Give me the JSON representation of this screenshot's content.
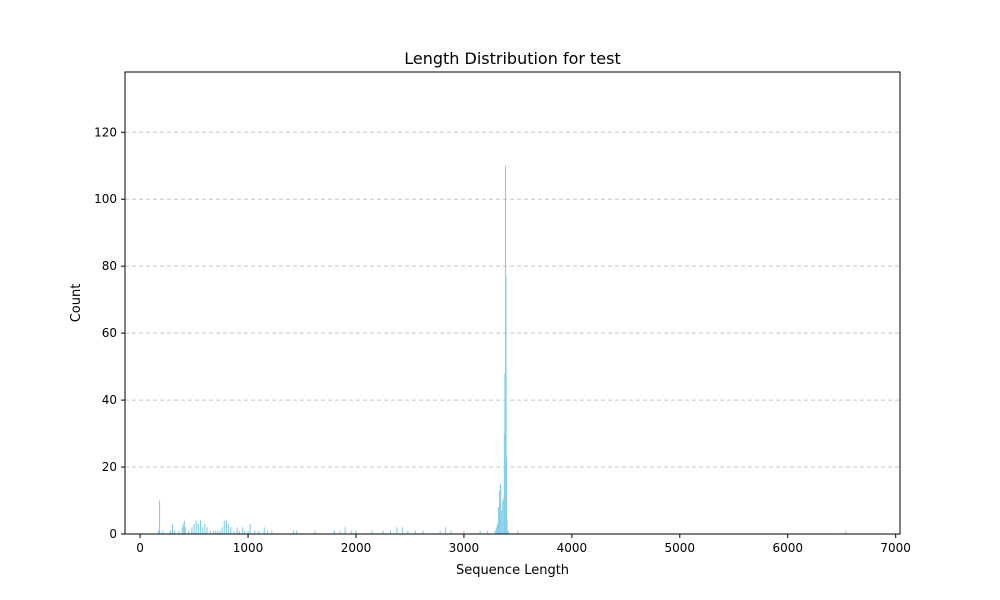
{
  "chart_data": {
    "type": "bar",
    "title": "Length Distribution for test",
    "xlabel": "Sequence Length",
    "ylabel": "Count",
    "xlim": [
      -140,
      7040
    ],
    "ylim": [
      0,
      138
    ],
    "xticks": [
      0,
      1000,
      2000,
      3000,
      4000,
      5000,
      6000,
      7000
    ],
    "yticks": [
      0,
      20,
      40,
      60,
      80,
      100,
      120
    ],
    "grid": "y-dashed",
    "bar_color": "#87ceeb",
    "grid_color": "#c8c8c8",
    "bars": [
      {
        "x": 170,
        "count": 1
      },
      {
        "x": 180,
        "count": 10
      },
      {
        "x": 210,
        "count": 1
      },
      {
        "x": 280,
        "count": 1
      },
      {
        "x": 300,
        "count": 3
      },
      {
        "x": 320,
        "count": 1
      },
      {
        "x": 360,
        "count": 1
      },
      {
        "x": 390,
        "count": 2
      },
      {
        "x": 400,
        "count": 3
      },
      {
        "x": 410,
        "count": 4
      },
      {
        "x": 420,
        "count": 2
      },
      {
        "x": 450,
        "count": 1
      },
      {
        "x": 480,
        "count": 2
      },
      {
        "x": 500,
        "count": 3
      },
      {
        "x": 520,
        "count": 4
      },
      {
        "x": 540,
        "count": 3
      },
      {
        "x": 560,
        "count": 4
      },
      {
        "x": 580,
        "count": 2
      },
      {
        "x": 600,
        "count": 3
      },
      {
        "x": 620,
        "count": 2
      },
      {
        "x": 650,
        "count": 1
      },
      {
        "x": 680,
        "count": 1
      },
      {
        "x": 700,
        "count": 1
      },
      {
        "x": 720,
        "count": 1
      },
      {
        "x": 740,
        "count": 1
      },
      {
        "x": 760,
        "count": 2
      },
      {
        "x": 780,
        "count": 4
      },
      {
        "x": 800,
        "count": 4
      },
      {
        "x": 820,
        "count": 3
      },
      {
        "x": 840,
        "count": 2
      },
      {
        "x": 870,
        "count": 1
      },
      {
        "x": 900,
        "count": 2
      },
      {
        "x": 920,
        "count": 1
      },
      {
        "x": 950,
        "count": 2
      },
      {
        "x": 970,
        "count": 1
      },
      {
        "x": 1000,
        "count": 1
      },
      {
        "x": 1020,
        "count": 3
      },
      {
        "x": 1060,
        "count": 1
      },
      {
        "x": 1100,
        "count": 1
      },
      {
        "x": 1150,
        "count": 2
      },
      {
        "x": 1180,
        "count": 1
      },
      {
        "x": 1220,
        "count": 1
      },
      {
        "x": 1420,
        "count": 1
      },
      {
        "x": 1450,
        "count": 1
      },
      {
        "x": 1620,
        "count": 1
      },
      {
        "x": 1800,
        "count": 1
      },
      {
        "x": 1850,
        "count": 1
      },
      {
        "x": 1900,
        "count": 2
      },
      {
        "x": 1960,
        "count": 1
      },
      {
        "x": 2000,
        "count": 1
      },
      {
        "x": 2150,
        "count": 1
      },
      {
        "x": 2250,
        "count": 1
      },
      {
        "x": 2320,
        "count": 1
      },
      {
        "x": 2380,
        "count": 2
      },
      {
        "x": 2430,
        "count": 2
      },
      {
        "x": 2480,
        "count": 1
      },
      {
        "x": 2550,
        "count": 1
      },
      {
        "x": 2620,
        "count": 1
      },
      {
        "x": 2780,
        "count": 1
      },
      {
        "x": 2830,
        "count": 2
      },
      {
        "x": 2880,
        "count": 1
      },
      {
        "x": 3000,
        "count": 1
      },
      {
        "x": 3150,
        "count": 1
      },
      {
        "x": 3220,
        "count": 1
      },
      {
        "x": 3290,
        "count": 1
      },
      {
        "x": 3300,
        "count": 2
      },
      {
        "x": 3310,
        "count": 3
      },
      {
        "x": 3320,
        "count": 8
      },
      {
        "x": 3330,
        "count": 13
      },
      {
        "x": 3340,
        "count": 15
      },
      {
        "x": 3350,
        "count": 7
      },
      {
        "x": 3360,
        "count": 10
      },
      {
        "x": 3370,
        "count": 11
      },
      {
        "x": 3375,
        "count": 30
      },
      {
        "x": 3380,
        "count": 48
      },
      {
        "x": 3385,
        "count": 110
      },
      {
        "x": 3390,
        "count": 77
      },
      {
        "x": 3395,
        "count": 23
      },
      {
        "x": 3400,
        "count": 4
      },
      {
        "x": 3410,
        "count": 1
      },
      {
        "x": 3500,
        "count": 1
      },
      {
        "x": 6540,
        "count": 1
      }
    ]
  }
}
